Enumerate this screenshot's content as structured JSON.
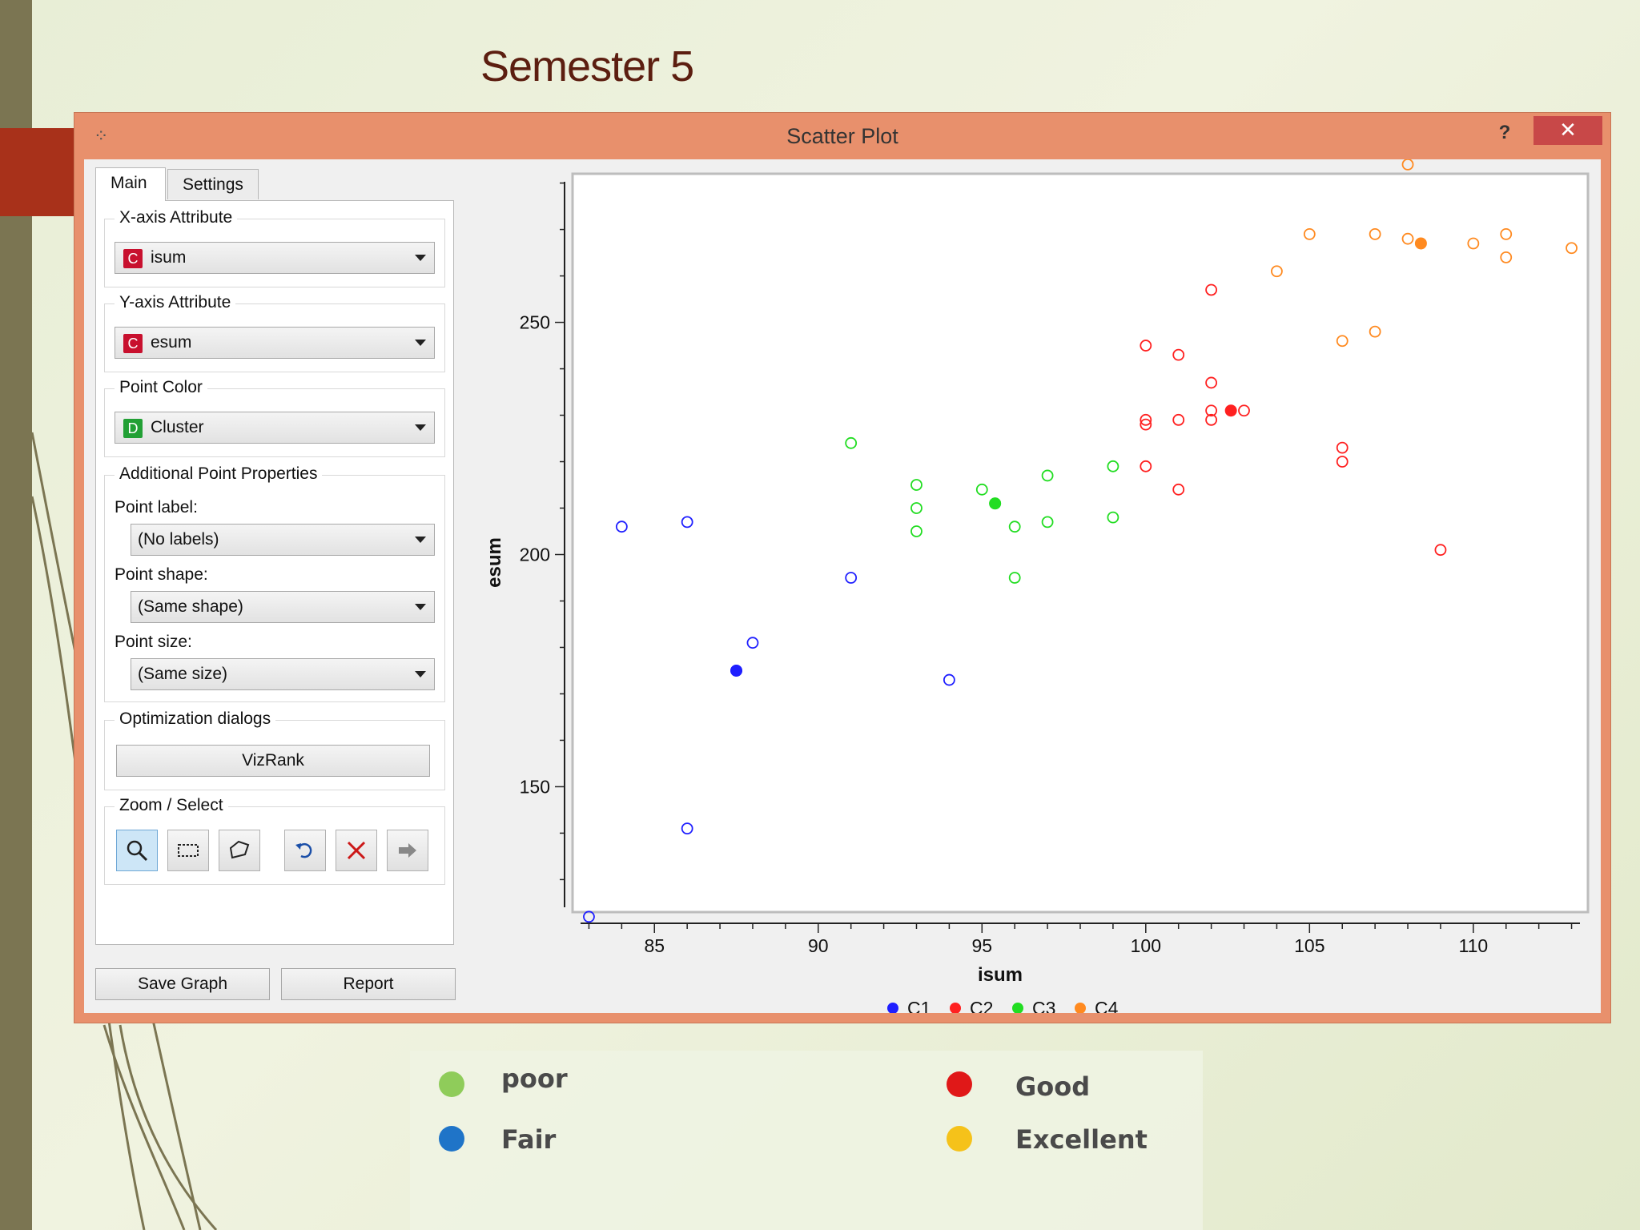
{
  "slide": {
    "title": "Semester 5"
  },
  "window": {
    "title": "Scatter Plot",
    "help": "?",
    "close": "✕"
  },
  "tabs": [
    {
      "label": "Main"
    },
    {
      "label": "Settings"
    }
  ],
  "x_axis": {
    "group": "X-axis Attribute",
    "badge": "C",
    "value": "isum"
  },
  "y_axis": {
    "group": "Y-axis Attribute",
    "badge": "C",
    "value": "esum"
  },
  "point_color": {
    "group": "Point Color",
    "badge": "D",
    "value": "Cluster"
  },
  "props": {
    "group": "Additional Point Properties",
    "label_label": "Point label:",
    "label_value": "(No labels)",
    "shape_label": "Point shape:",
    "shape_value": "(Same shape)",
    "size_label": "Point size:",
    "size_value": "(Same size)"
  },
  "optimization": {
    "group": "Optimization dialogs",
    "button": "VizRank"
  },
  "zoom": {
    "group": "Zoom / Select"
  },
  "footer": {
    "save": "Save Graph",
    "report": "Report"
  },
  "colors": {
    "C1": "#1f1fff",
    "C2": "#ff2020",
    "C3": "#22dd22",
    "C4": "#ff8a20"
  },
  "chart_data": {
    "type": "scatter",
    "xlabel": "isum",
    "ylabel": "esum",
    "xlim": [
      82.5,
      113.5
    ],
    "ylim": [
      123,
      282
    ],
    "xticks": [
      85,
      90,
      95,
      100,
      105,
      110
    ],
    "yticks": [
      150,
      200,
      250
    ],
    "legend": [
      "C1",
      "C2",
      "C3",
      "C4"
    ],
    "series": [
      {
        "name": "C1",
        "points": [
          [
            83,
            122
          ],
          [
            84,
            206
          ],
          [
            86,
            207
          ],
          [
            86,
            141
          ],
          [
            87.5,
            175
          ],
          [
            88,
            181
          ],
          [
            91,
            195
          ],
          [
            94,
            173
          ]
        ],
        "centroid": [
          87.5,
          175
        ]
      },
      {
        "name": "C2",
        "points": [
          [
            100,
            245
          ],
          [
            100,
            229
          ],
          [
            100,
            228
          ],
          [
            100,
            219
          ],
          [
            101,
            243
          ],
          [
            101,
            229
          ],
          [
            101,
            214
          ],
          [
            102,
            257
          ],
          [
            102,
            237
          ],
          [
            102,
            231
          ],
          [
            102,
            229
          ],
          [
            103,
            231
          ],
          [
            106,
            223
          ],
          [
            106,
            220
          ],
          [
            109,
            201
          ]
        ],
        "centroid": [
          102.6,
          231
        ]
      },
      {
        "name": "C3",
        "points": [
          [
            91,
            224
          ],
          [
            93,
            215
          ],
          [
            93,
            210
          ],
          [
            93,
            205
          ],
          [
            95,
            214
          ],
          [
            95.4,
            211
          ],
          [
            96,
            206
          ],
          [
            96,
            195
          ],
          [
            97,
            217
          ],
          [
            97,
            207
          ],
          [
            99,
            219
          ],
          [
            99,
            208
          ]
        ],
        "centroid": [
          95.4,
          211
        ]
      },
      {
        "name": "C4",
        "points": [
          [
            104,
            261
          ],
          [
            105,
            269
          ],
          [
            106,
            246
          ],
          [
            107,
            269
          ],
          [
            107,
            248
          ],
          [
            108,
            284
          ],
          [
            108,
            268
          ],
          [
            110,
            267
          ],
          [
            111,
            269
          ],
          [
            111,
            264
          ],
          [
            113,
            266
          ]
        ],
        "centroid": [
          108.4,
          267
        ]
      }
    ]
  },
  "bottom_legend": [
    {
      "label": "poor",
      "color": "#8fcc5a"
    },
    {
      "label": "Fair",
      "color": "#1f74c8"
    },
    {
      "label": "Good",
      "color": "#e01818"
    },
    {
      "label": "Excellent",
      "color": "#f5c21a"
    }
  ]
}
